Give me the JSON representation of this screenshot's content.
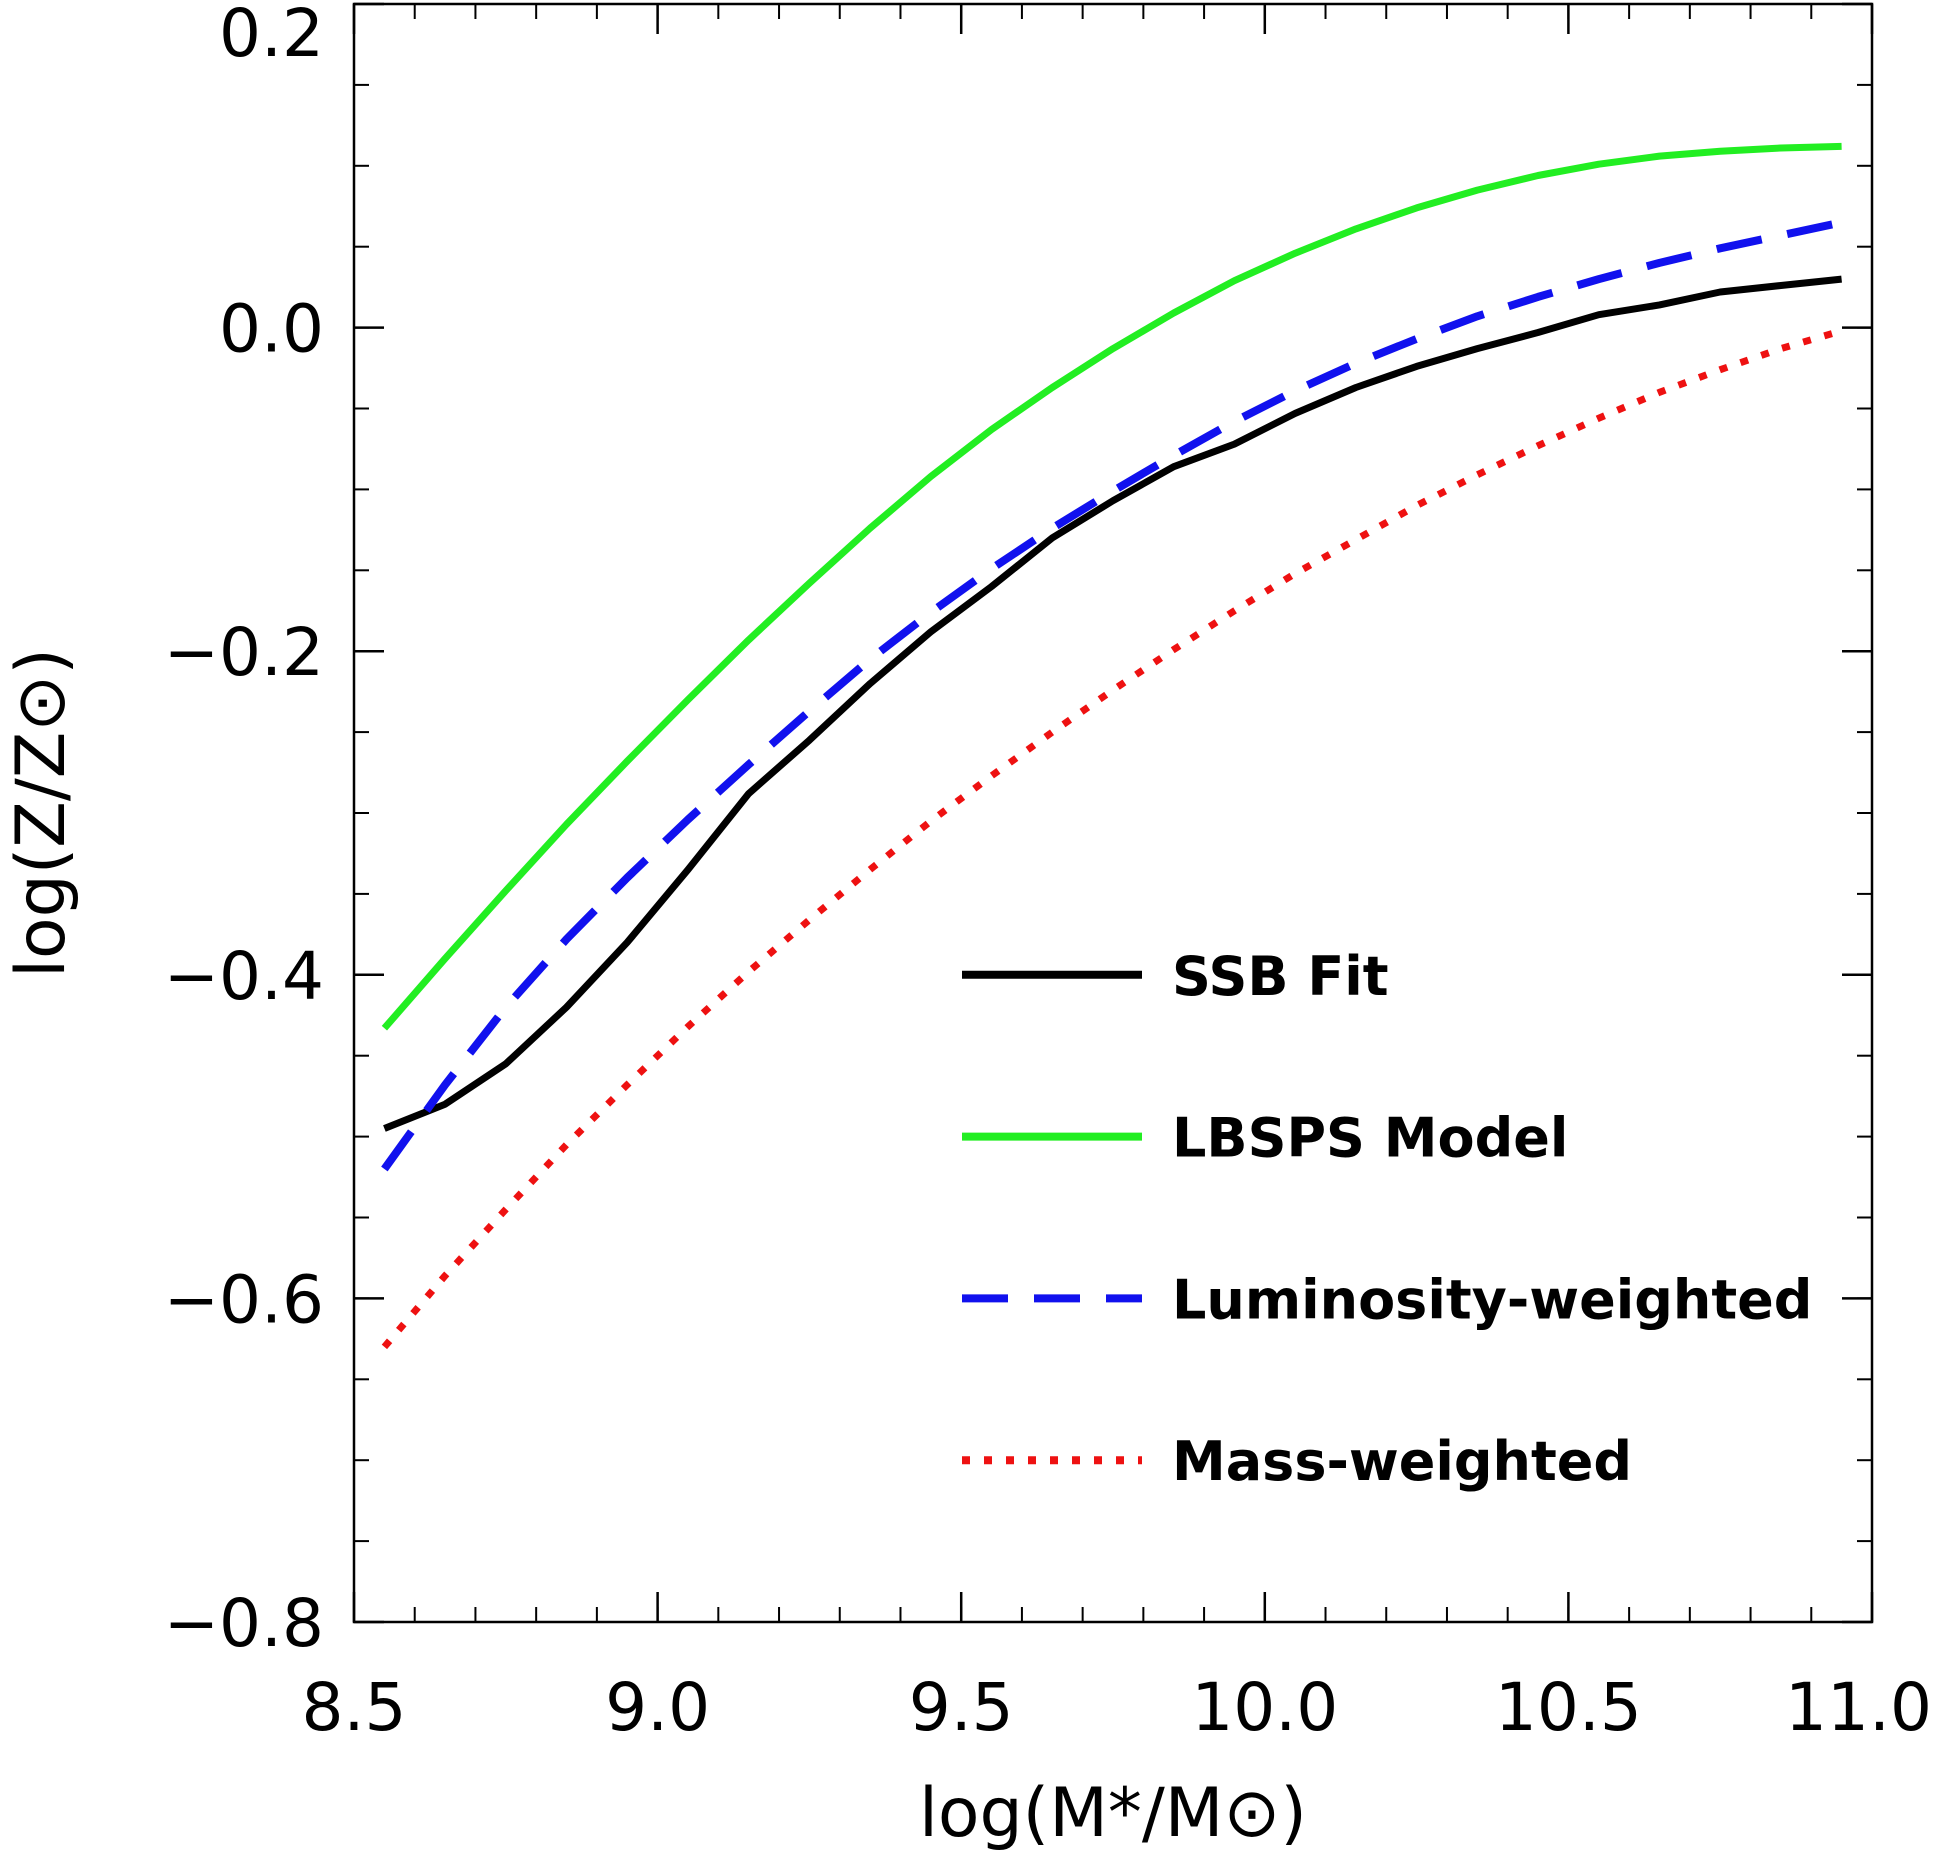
{
  "chart_data": {
    "type": "line",
    "xlabel": "log(M*/M⊙)",
    "ylabel": "log(Z/Z⊙)",
    "xlim": [
      8.5,
      11.0
    ],
    "ylim": [
      -0.8,
      0.2
    ],
    "x_ticks": [
      8.5,
      9.0,
      9.5,
      10.0,
      10.5,
      11.0
    ],
    "x_tick_labels": [
      "8.5",
      "9.0",
      "9.5",
      "10.0",
      "10.5",
      "11.0"
    ],
    "y_ticks": [
      -0.8,
      -0.6,
      -0.4,
      -0.2,
      0.0,
      0.2
    ],
    "y_tick_labels": [
      "−0.8",
      "−0.6",
      "−0.4",
      "−0.2",
      "0.0",
      "0.2"
    ],
    "x_minor_step": 0.1,
    "y_minor_step": 0.05,
    "grid": false,
    "legend_placement": "lower-right",
    "series": [
      {
        "name": "SSB Fit",
        "color": "#000000",
        "style": "solid",
        "x": [
          8.55,
          8.65,
          8.75,
          8.85,
          8.95,
          9.05,
          9.15,
          9.25,
          9.35,
          9.45,
          9.55,
          9.65,
          9.75,
          9.85,
          9.95,
          10.05,
          10.15,
          10.25,
          10.35,
          10.45,
          10.55,
          10.65,
          10.75,
          10.85,
          10.95
        ],
        "y": [
          -0.495,
          -0.48,
          -0.455,
          -0.42,
          -0.38,
          -0.335,
          -0.288,
          -0.255,
          -0.22,
          -0.188,
          -0.16,
          -0.13,
          -0.107,
          -0.086,
          -0.072,
          -0.053,
          -0.037,
          -0.024,
          -0.013,
          -0.003,
          0.008,
          0.014,
          0.022,
          0.026,
          0.03
        ]
      },
      {
        "name": "LBSPS Model",
        "color": "#22ee22",
        "style": "solid",
        "x": [
          8.55,
          8.65,
          8.75,
          8.85,
          8.95,
          9.05,
          9.15,
          9.25,
          9.35,
          9.45,
          9.55,
          9.65,
          9.75,
          9.85,
          9.95,
          10.05,
          10.15,
          10.25,
          10.35,
          10.45,
          10.55,
          10.65,
          10.75,
          10.85,
          10.95
        ],
        "y": [
          -0.433,
          -0.39,
          -0.348,
          -0.307,
          -0.268,
          -0.23,
          -0.193,
          -0.158,
          -0.124,
          -0.092,
          -0.063,
          -0.037,
          -0.013,
          0.009,
          0.029,
          0.046,
          0.061,
          0.074,
          0.085,
          0.094,
          0.101,
          0.106,
          0.109,
          0.111,
          0.112
        ]
      },
      {
        "name": "Luminosity-weighted",
        "color": "#1111ee",
        "style": "dashed",
        "x": [
          8.55,
          8.65,
          8.75,
          8.85,
          8.95,
          9.05,
          9.15,
          9.25,
          9.35,
          9.45,
          9.55,
          9.65,
          9.75,
          9.85,
          9.95,
          10.05,
          10.15,
          10.25,
          10.35,
          10.45,
          10.55,
          10.65,
          10.75,
          10.85,
          10.95
        ],
        "y": [
          -0.52,
          -0.468,
          -0.42,
          -0.378,
          -0.34,
          -0.304,
          -0.27,
          -0.237,
          -0.205,
          -0.176,
          -0.149,
          -0.124,
          -0.101,
          -0.079,
          -0.058,
          -0.039,
          -0.022,
          -0.007,
          0.007,
          0.019,
          0.03,
          0.04,
          0.049,
          0.057,
          0.065
        ]
      },
      {
        "name": "Mass-weighted",
        "color": "#ee1111",
        "style": "dotted",
        "x": [
          8.55,
          8.65,
          8.75,
          8.85,
          8.95,
          9.05,
          9.15,
          9.25,
          9.35,
          9.45,
          9.55,
          9.65,
          9.75,
          9.85,
          9.95,
          10.05,
          10.15,
          10.25,
          10.35,
          10.45,
          10.55,
          10.65,
          10.75,
          10.85,
          10.95
        ],
        "y": [
          -0.63,
          -0.586,
          -0.545,
          -0.505,
          -0.468,
          -0.432,
          -0.398,
          -0.366,
          -0.335,
          -0.305,
          -0.277,
          -0.25,
          -0.224,
          -0.199,
          -0.175,
          -0.152,
          -0.131,
          -0.11,
          -0.091,
          -0.073,
          -0.056,
          -0.04,
          -0.026,
          -0.013,
          -0.002
        ]
      }
    ]
  }
}
